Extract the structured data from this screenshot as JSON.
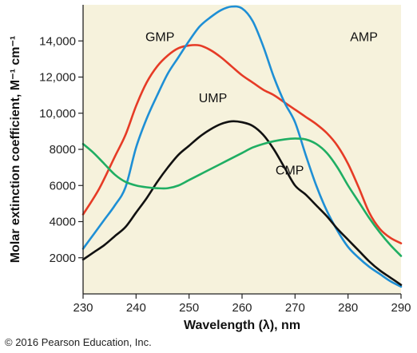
{
  "chart_data": {
    "type": "line",
    "xlabel": "Wavelength (λ), nm",
    "ylabel": "Molar extinction coefficient, M⁻¹ cm⁻¹",
    "xlim": [
      230,
      290
    ],
    "ylim": [
      0,
      16000
    ],
    "x_ticks": [
      "230",
      "240",
      "250",
      "260",
      "270",
      "280",
      "290"
    ],
    "y_ticks": [
      "2000",
      "4000",
      "6000",
      "8000",
      "10,000",
      "12,000",
      "14,000"
    ],
    "grid": false,
    "plot_background": "#f6f2dc",
    "series": [
      {
        "name": "GMP",
        "color": "#e63b26",
        "label_at": [
          244.5,
          14000
        ],
        "points": [
          [
            230,
            4400
          ],
          [
            233,
            5800
          ],
          [
            236,
            7600
          ],
          [
            238,
            8800
          ],
          [
            240,
            10400
          ],
          [
            242,
            11700
          ],
          [
            244,
            12600
          ],
          [
            246,
            13200
          ],
          [
            248,
            13600
          ],
          [
            250,
            13750
          ],
          [
            252,
            13750
          ],
          [
            254,
            13500
          ],
          [
            256,
            13100
          ],
          [
            258,
            12600
          ],
          [
            260,
            12100
          ],
          [
            262,
            11700
          ],
          [
            264,
            11300
          ],
          [
            266,
            11000
          ],
          [
            268,
            10600
          ],
          [
            270,
            10200
          ],
          [
            272,
            9800
          ],
          [
            274,
            9400
          ],
          [
            276,
            8900
          ],
          [
            278,
            8200
          ],
          [
            280,
            7200
          ],
          [
            282,
            5900
          ],
          [
            284,
            4500
          ],
          [
            286,
            3600
          ],
          [
            288,
            3100
          ],
          [
            290,
            2800
          ]
        ]
      },
      {
        "name": "AMP",
        "color": "#1e8fd5",
        "label_at": [
          283,
          14000
        ],
        "points": [
          [
            230,
            2500
          ],
          [
            232,
            3300
          ],
          [
            234,
            4100
          ],
          [
            236,
            4900
          ],
          [
            238,
            5900
          ],
          [
            240,
            8100
          ],
          [
            242,
            9700
          ],
          [
            244,
            11000
          ],
          [
            246,
            12200
          ],
          [
            248,
            13100
          ],
          [
            250,
            14000
          ],
          [
            252,
            14800
          ],
          [
            254,
            15300
          ],
          [
            256,
            15700
          ],
          [
            258,
            15900
          ],
          [
            260,
            15800
          ],
          [
            262,
            15100
          ],
          [
            264,
            13700
          ],
          [
            266,
            12000
          ],
          [
            268,
            10600
          ],
          [
            270,
            9500
          ],
          [
            272,
            7700
          ],
          [
            274,
            6000
          ],
          [
            276,
            4600
          ],
          [
            278,
            3500
          ],
          [
            280,
            2600
          ],
          [
            282,
            2000
          ],
          [
            284,
            1500
          ],
          [
            286,
            1100
          ],
          [
            288,
            700
          ],
          [
            290,
            400
          ]
        ]
      },
      {
        "name": "UMP",
        "color": "#111111",
        "label_at": [
          254.5,
          10600
        ],
        "points": [
          [
            230,
            1900
          ],
          [
            232,
            2300
          ],
          [
            234,
            2700
          ],
          [
            236,
            3200
          ],
          [
            238,
            3700
          ],
          [
            240,
            4500
          ],
          [
            242,
            5300
          ],
          [
            244,
            6200
          ],
          [
            246,
            7000
          ],
          [
            248,
            7700
          ],
          [
            250,
            8200
          ],
          [
            252,
            8700
          ],
          [
            254,
            9100
          ],
          [
            256,
            9400
          ],
          [
            258,
            9550
          ],
          [
            260,
            9500
          ],
          [
            262,
            9300
          ],
          [
            264,
            8800
          ],
          [
            266,
            8000
          ],
          [
            268,
            7000
          ],
          [
            270,
            6000
          ],
          [
            272,
            5500
          ],
          [
            274,
            4900
          ],
          [
            276,
            4300
          ],
          [
            278,
            3600
          ],
          [
            280,
            3000
          ],
          [
            282,
            2400
          ],
          [
            284,
            1800
          ],
          [
            286,
            1300
          ],
          [
            288,
            900
          ],
          [
            290,
            500
          ]
        ]
      },
      {
        "name": "CMP",
        "color": "#1fae63",
        "label_at": [
          269,
          6600
        ],
        "points": [
          [
            230,
            8300
          ],
          [
            232,
            7800
          ],
          [
            234,
            7200
          ],
          [
            236,
            6600
          ],
          [
            238,
            6200
          ],
          [
            240,
            6000
          ],
          [
            242,
            5900
          ],
          [
            244,
            5850
          ],
          [
            246,
            5850
          ],
          [
            248,
            6000
          ],
          [
            250,
            6300
          ],
          [
            252,
            6600
          ],
          [
            254,
            6900
          ],
          [
            256,
            7200
          ],
          [
            258,
            7500
          ],
          [
            260,
            7800
          ],
          [
            262,
            8100
          ],
          [
            264,
            8300
          ],
          [
            266,
            8450
          ],
          [
            268,
            8550
          ],
          [
            270,
            8600
          ],
          [
            272,
            8550
          ],
          [
            274,
            8300
          ],
          [
            276,
            7800
          ],
          [
            278,
            7000
          ],
          [
            280,
            6000
          ],
          [
            282,
            5100
          ],
          [
            284,
            4200
          ],
          [
            286,
            3400
          ],
          [
            288,
            2700
          ],
          [
            290,
            2100
          ]
        ]
      }
    ]
  },
  "footer": {
    "credit": "© 2016 Pearson Education, Inc."
  }
}
